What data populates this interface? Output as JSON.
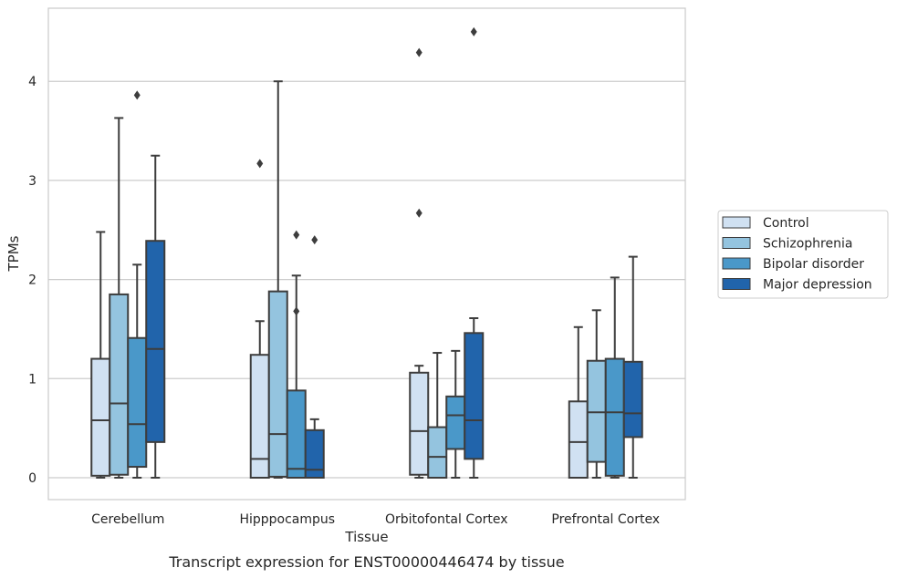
{
  "chart_data": {
    "type": "boxplot",
    "caption": "Transcript expression for ENST00000446474 by tissue",
    "xlabel": "Tissue",
    "ylabel": "TPMs",
    "ylim": [
      -0.22,
      4.72
    ],
    "yticks": [
      0,
      1,
      2,
      3,
      4
    ],
    "grid": "horizontal",
    "legend_position": "right",
    "categories": [
      "Cerebellum",
      "Hipppocampus",
      "Orbitofontal Cortex",
      "Prefrontal Cortex"
    ],
    "series": [
      {
        "name": "Control",
        "color": "#d0e1f2",
        "boxes": [
          {
            "whislo": 0.0,
            "q1": 0.02,
            "med": 0.58,
            "q3": 1.2,
            "whishi": 2.48,
            "fliers": []
          },
          {
            "whislo": 0.0,
            "q1": 0.0,
            "med": 0.19,
            "q3": 1.24,
            "whishi": 1.58,
            "fliers": [
              3.17
            ]
          },
          {
            "whislo": 0.0,
            "q1": 0.03,
            "med": 0.47,
            "q3": 1.06,
            "whishi": 1.13,
            "fliers": [
              2.67,
              4.29
            ]
          },
          {
            "whislo": 0.0,
            "q1": 0.0,
            "med": 0.36,
            "q3": 0.77,
            "whishi": 1.52,
            "fliers": []
          }
        ]
      },
      {
        "name": "Schizophrenia",
        "color": "#94c4df",
        "boxes": [
          {
            "whislo": 0.0,
            "q1": 0.03,
            "med": 0.75,
            "q3": 1.85,
            "whishi": 3.63,
            "fliers": []
          },
          {
            "whislo": 0.0,
            "q1": 0.01,
            "med": 0.44,
            "q3": 1.88,
            "whishi": 4.0,
            "fliers": []
          },
          {
            "whislo": 0.0,
            "q1": 0.0,
            "med": 0.21,
            "q3": 0.51,
            "whishi": 1.26,
            "fliers": []
          },
          {
            "whislo": 0.0,
            "q1": 0.16,
            "med": 0.66,
            "q3": 1.18,
            "whishi": 1.69,
            "fliers": []
          }
        ]
      },
      {
        "name": "Bipolar disorder",
        "color": "#4a98c9",
        "boxes": [
          {
            "whislo": 0.0,
            "q1": 0.11,
            "med": 0.54,
            "q3": 1.41,
            "whishi": 2.15,
            "fliers": [
              3.86
            ]
          },
          {
            "whislo": 0.0,
            "q1": 0.0,
            "med": 0.09,
            "q3": 0.88,
            "whishi": 2.04,
            "fliers": [
              1.68,
              2.45
            ]
          },
          {
            "whislo": 0.0,
            "q1": 0.29,
            "med": 0.63,
            "q3": 0.82,
            "whishi": 1.28,
            "fliers": []
          },
          {
            "whislo": 0.0,
            "q1": 0.02,
            "med": 0.66,
            "q3": 1.2,
            "whishi": 2.02,
            "fliers": []
          }
        ]
      },
      {
        "name": "Major depression",
        "color": "#2164ab",
        "boxes": [
          {
            "whislo": 0.0,
            "q1": 0.36,
            "med": 1.3,
            "q3": 2.39,
            "whishi": 3.25,
            "fliers": []
          },
          {
            "whislo": 0.0,
            "q1": 0.0,
            "med": 0.08,
            "q3": 0.48,
            "whishi": 0.59,
            "fliers": [
              2.4
            ]
          },
          {
            "whislo": 0.0,
            "q1": 0.19,
            "med": 0.58,
            "q3": 1.46,
            "whishi": 1.61,
            "fliers": [
              4.5
            ]
          },
          {
            "whislo": 0.0,
            "q1": 0.41,
            "med": 0.65,
            "q3": 1.17,
            "whishi": 2.23,
            "fliers": []
          }
        ]
      }
    ]
  }
}
